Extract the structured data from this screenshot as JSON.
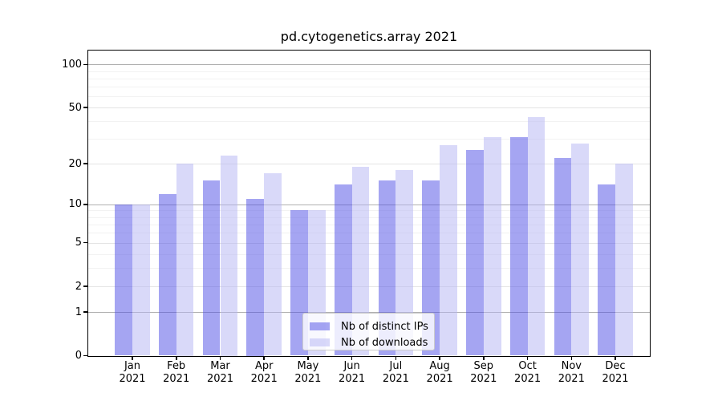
{
  "title": "pd.cytogenetics.array 2021",
  "legend": {
    "items": [
      {
        "label": "Nb of distinct IPs",
        "color": "rgba(75,75,230,0.5)"
      },
      {
        "label": "Nb of downloads",
        "color": "rgba(179,179,243,0.5)"
      }
    ]
  },
  "colors": {
    "background": "#ffffff",
    "axis": "#000000",
    "gridline_major": "#b0b0b0",
    "gridline_mid": "#e4e4e4",
    "gridline_minor": "#f2f2f2",
    "legend_border": "#cccccc",
    "bar_distinct_ips": "rgba(75,75,230,0.5)",
    "bar_downloads": "rgba(179,179,243,0.5)"
  },
  "chart_data": {
    "type": "bar",
    "title": "pd.cytogenetics.array 2021",
    "xlabel": "",
    "ylabel": "",
    "scale": "log1p",
    "ylim": [
      0,
      125
    ],
    "grid": true,
    "legend_position": "bottom-center-inside",
    "categories": [
      "Jan 2021",
      "Feb 2021",
      "Mar 2021",
      "Apr 2021",
      "May 2021",
      "Jun 2021",
      "Jul 2021",
      "Aug 2021",
      "Sep 2021",
      "Oct 2021",
      "Nov 2021",
      "Dec 2021"
    ],
    "series": [
      {
        "name": "Nb of distinct IPs",
        "color": "rgba(75,75,230,0.5)",
        "values": [
          10,
          12,
          15,
          11,
          9,
          14,
          15,
          15,
          25,
          31,
          22,
          14
        ]
      },
      {
        "name": "Nb of downloads",
        "color": "rgba(179,179,243,0.5)",
        "values": [
          10,
          20,
          23,
          17,
          9,
          19,
          18,
          27,
          31,
          43,
          28,
          20
        ]
      }
    ],
    "y_ticks": [
      0,
      1,
      2,
      5,
      10,
      20,
      50,
      100
    ],
    "gridlines": {
      "major": [
        1,
        10,
        100
      ],
      "mid": [
        2,
        5,
        20,
        50
      ],
      "minor": [
        3,
        4,
        6,
        7,
        8,
        9,
        30,
        40,
        60,
        70,
        80,
        90
      ]
    }
  }
}
